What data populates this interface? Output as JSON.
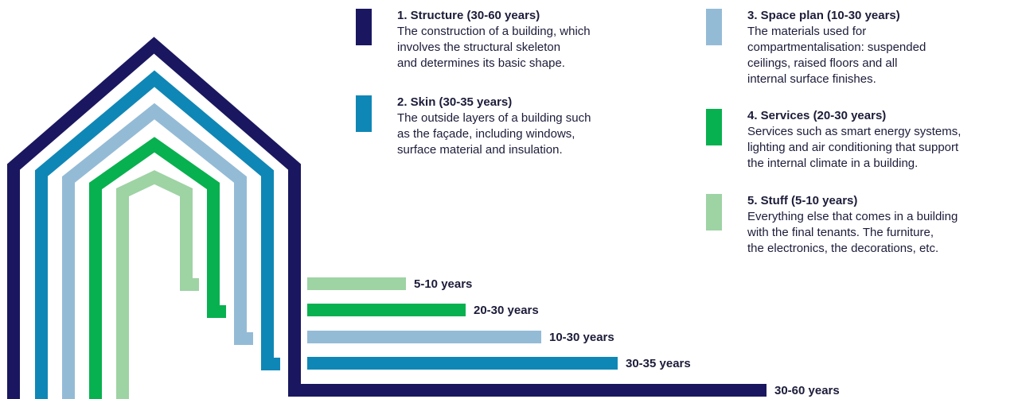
{
  "layers": [
    {
      "title": "1. Structure (30-60 years)",
      "description": "The construction of a building, which\ninvolves the structural skeleton\nand determines its basic shape.",
      "bar_label": "30-60 years",
      "lifespan_max_years": 60,
      "color": "#1a1760"
    },
    {
      "title": "2. Skin (30-35 years)",
      "description": "The outside layers of a building such\nas the façade, including windows,\nsurface material and insulation.",
      "bar_label": "30-35 years",
      "lifespan_max_years": 35,
      "color": "#0f87b6"
    },
    {
      "title": "3. Space plan (10-30 years)",
      "description": "The materials used for\ncompartmentalisation: suspended\nceilings, raised floors and all\ninternal surface finishes.",
      "bar_label": "10-30 years",
      "lifespan_max_years": 30,
      "color": "#94bbd6"
    },
    {
      "title": "4. Services (20-30 years)",
      "description": "Services such as smart energy systems,\nlighting and air conditioning that support\nthe internal climate in a building.",
      "bar_label": "20-30 years",
      "lifespan_max_years": 30,
      "color": "#08b14f"
    },
    {
      "title": "5. Stuff (5-10 years)",
      "description": "Everything else that comes in a building\nwith the final tenants. The furniture,\nthe electronics, the decorations, etc.",
      "bar_label": "5-10 years",
      "lifespan_max_years": 10,
      "color": "#9ed3a4"
    }
  ]
}
